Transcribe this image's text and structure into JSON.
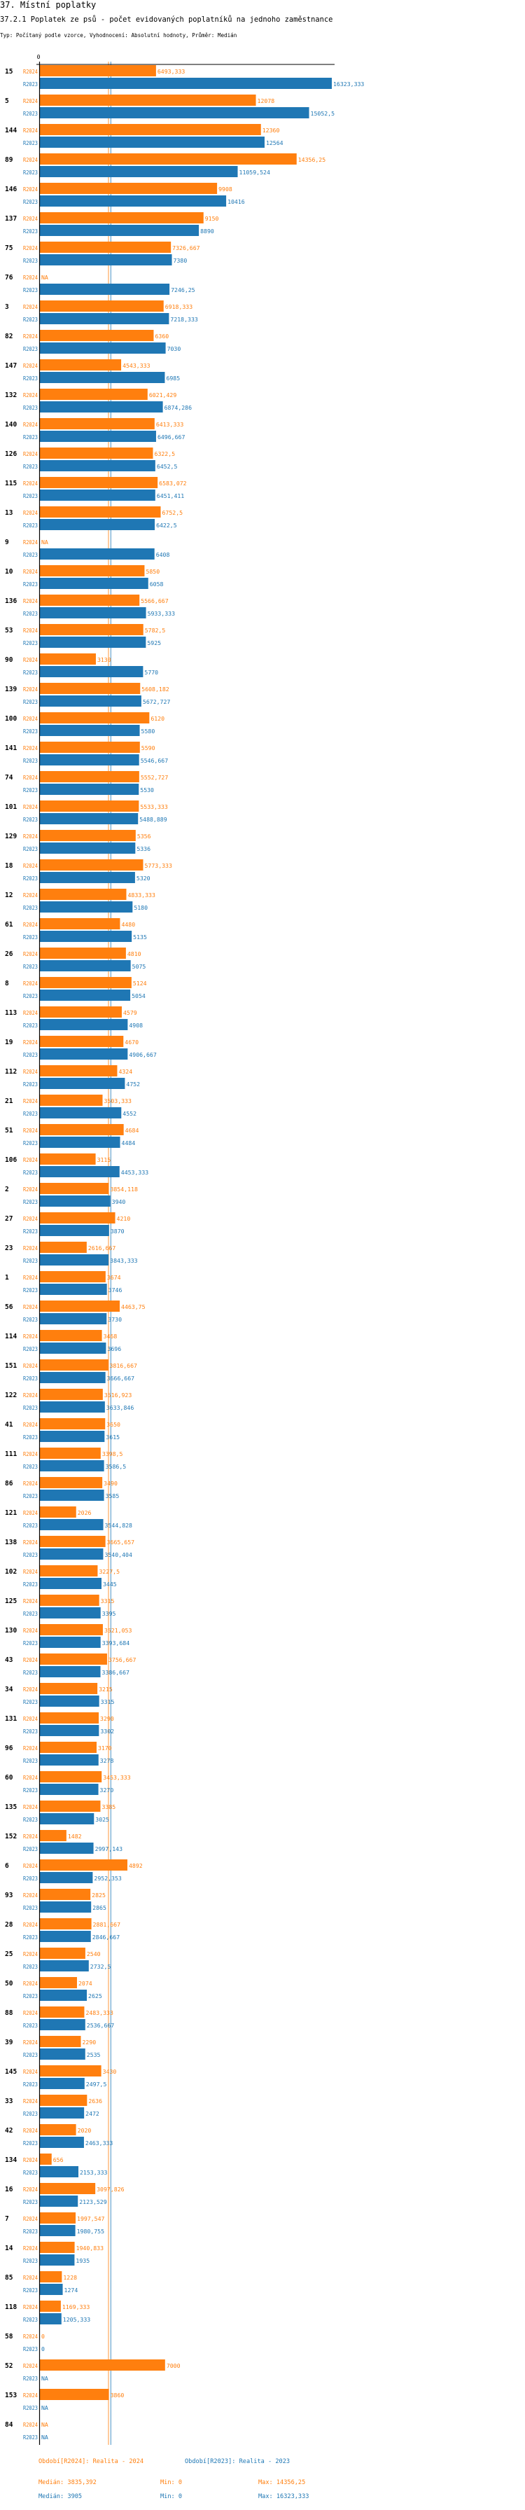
{
  "header": {
    "section_title": "37. Místní poplatky",
    "chart_title": "37.2.1 Poplatek ze psů - počet evidovaných poplatníků na jednoho zaměstnance",
    "subtitle": "Typ: Počítaný podle vzorce, Vyhodnocení: Absolutní hodnoty, Průměr: Medián"
  },
  "colors": {
    "R2024": "#ff7f0e",
    "R2023": "#1f77b4",
    "axis": "#000000"
  },
  "chart_data": {
    "type": "bar",
    "orientation": "horizontal",
    "x_tick_labels": [
      "0"
    ],
    "na_label": "NA",
    "decimal_separator": ",",
    "categories": [
      "15",
      "5",
      "144",
      "89",
      "146",
      "137",
      "75",
      "76",
      "3",
      "82",
      "147",
      "132",
      "140",
      "126",
      "115",
      "13",
      "9",
      "10",
      "136",
      "53",
      "90",
      "139",
      "100",
      "141",
      "74",
      "101",
      "129",
      "18",
      "12",
      "61",
      "26",
      "8",
      "113",
      "19",
      "112",
      "21",
      "51",
      "106",
      "2",
      "27",
      "23",
      "1",
      "56",
      "114",
      "151",
      "122",
      "41",
      "111",
      "86",
      "121",
      "138",
      "102",
      "125",
      "130",
      "43",
      "34",
      "131",
      "96",
      "60",
      "135",
      "152",
      "6",
      "93",
      "28",
      "25",
      "50",
      "88",
      "39",
      "145",
      "33",
      "42",
      "134",
      "16",
      "7",
      "14",
      "85",
      "118",
      "58",
      "52",
      "153",
      "84"
    ],
    "series": [
      {
        "name": "R2024",
        "values": [
          6493.333,
          12078,
          12360,
          14356.25,
          9908,
          9150,
          7326.667,
          null,
          6918.333,
          6360,
          4543.333,
          6021.429,
          6413.333,
          6322.5,
          6583.072,
          6752.5,
          null,
          5850,
          5566.667,
          5782.5,
          3130,
          5608.182,
          6120,
          5590,
          5552.727,
          5533.333,
          5356,
          5773.333,
          4833.333,
          4480,
          4810,
          5124,
          4579,
          4670,
          4324,
          3503.333,
          4684,
          3115,
          3854.118,
          4210,
          2616.667,
          3674,
          4463.75,
          3468,
          3816.667,
          3516.923,
          3650,
          3398.5,
          3490,
          2026,
          3665.657,
          3227.5,
          3315,
          3521.053,
          3756.667,
          3215,
          3290,
          3170,
          3453.333,
          3385,
          1482,
          4892,
          2825,
          2881.667,
          2540,
          2074,
          2483.333,
          2290,
          3430,
          2636,
          2020,
          656,
          3097.826,
          1997.547,
          1940.833,
          1228,
          1169.333,
          0,
          7000,
          3860,
          null
        ]
      },
      {
        "name": "R2023",
        "values": [
          16323.333,
          15052.5,
          12564,
          11059.524,
          10416,
          8890,
          7380,
          7246.25,
          7218.333,
          7030,
          6985,
          6874.286,
          6496.667,
          6452.5,
          6451.411,
          6422.5,
          6408,
          6058,
          5933.333,
          5925,
          5770,
          5672.727,
          5580,
          5546.667,
          5530,
          5488.889,
          5336,
          5320,
          5180,
          5135,
          5075,
          5054,
          4908,
          4906.667,
          4752,
          4552,
          4484,
          4453.333,
          3940,
          3870,
          3843.333,
          3746,
          3730,
          3696,
          3666.667,
          3633.846,
          3615,
          3586.5,
          3585,
          3544.828,
          3540.404,
          3445,
          3395,
          3393.684,
          3386.667,
          3315,
          3302,
          3278,
          3270,
          3025,
          2997.143,
          2952.353,
          2865,
          2846.667,
          2732.5,
          2625,
          2536.667,
          2535,
          2497.5,
          2472,
          2463.333,
          2153.333,
          2123.529,
          1980.755,
          1935,
          1274,
          1205.333,
          0,
          null,
          null,
          null
        ]
      }
    ],
    "medians": {
      "R2024": 3835.392,
      "R2023": 3905
    },
    "xlim": [
      0,
      16323.333
    ]
  },
  "legend": {
    "r2024": "Období[R2024]: Realita - 2024",
    "r2023": "Období[R2023]: Realita - 2023"
  },
  "stats": {
    "r2024": {
      "median": "Medián: 3835,392",
      "min": "Min: 0",
      "max": "Max: 14356,25"
    },
    "r2023": {
      "median": "Medián: 3905",
      "min": "Min: 0",
      "max": "Max: 16323,333"
    }
  }
}
